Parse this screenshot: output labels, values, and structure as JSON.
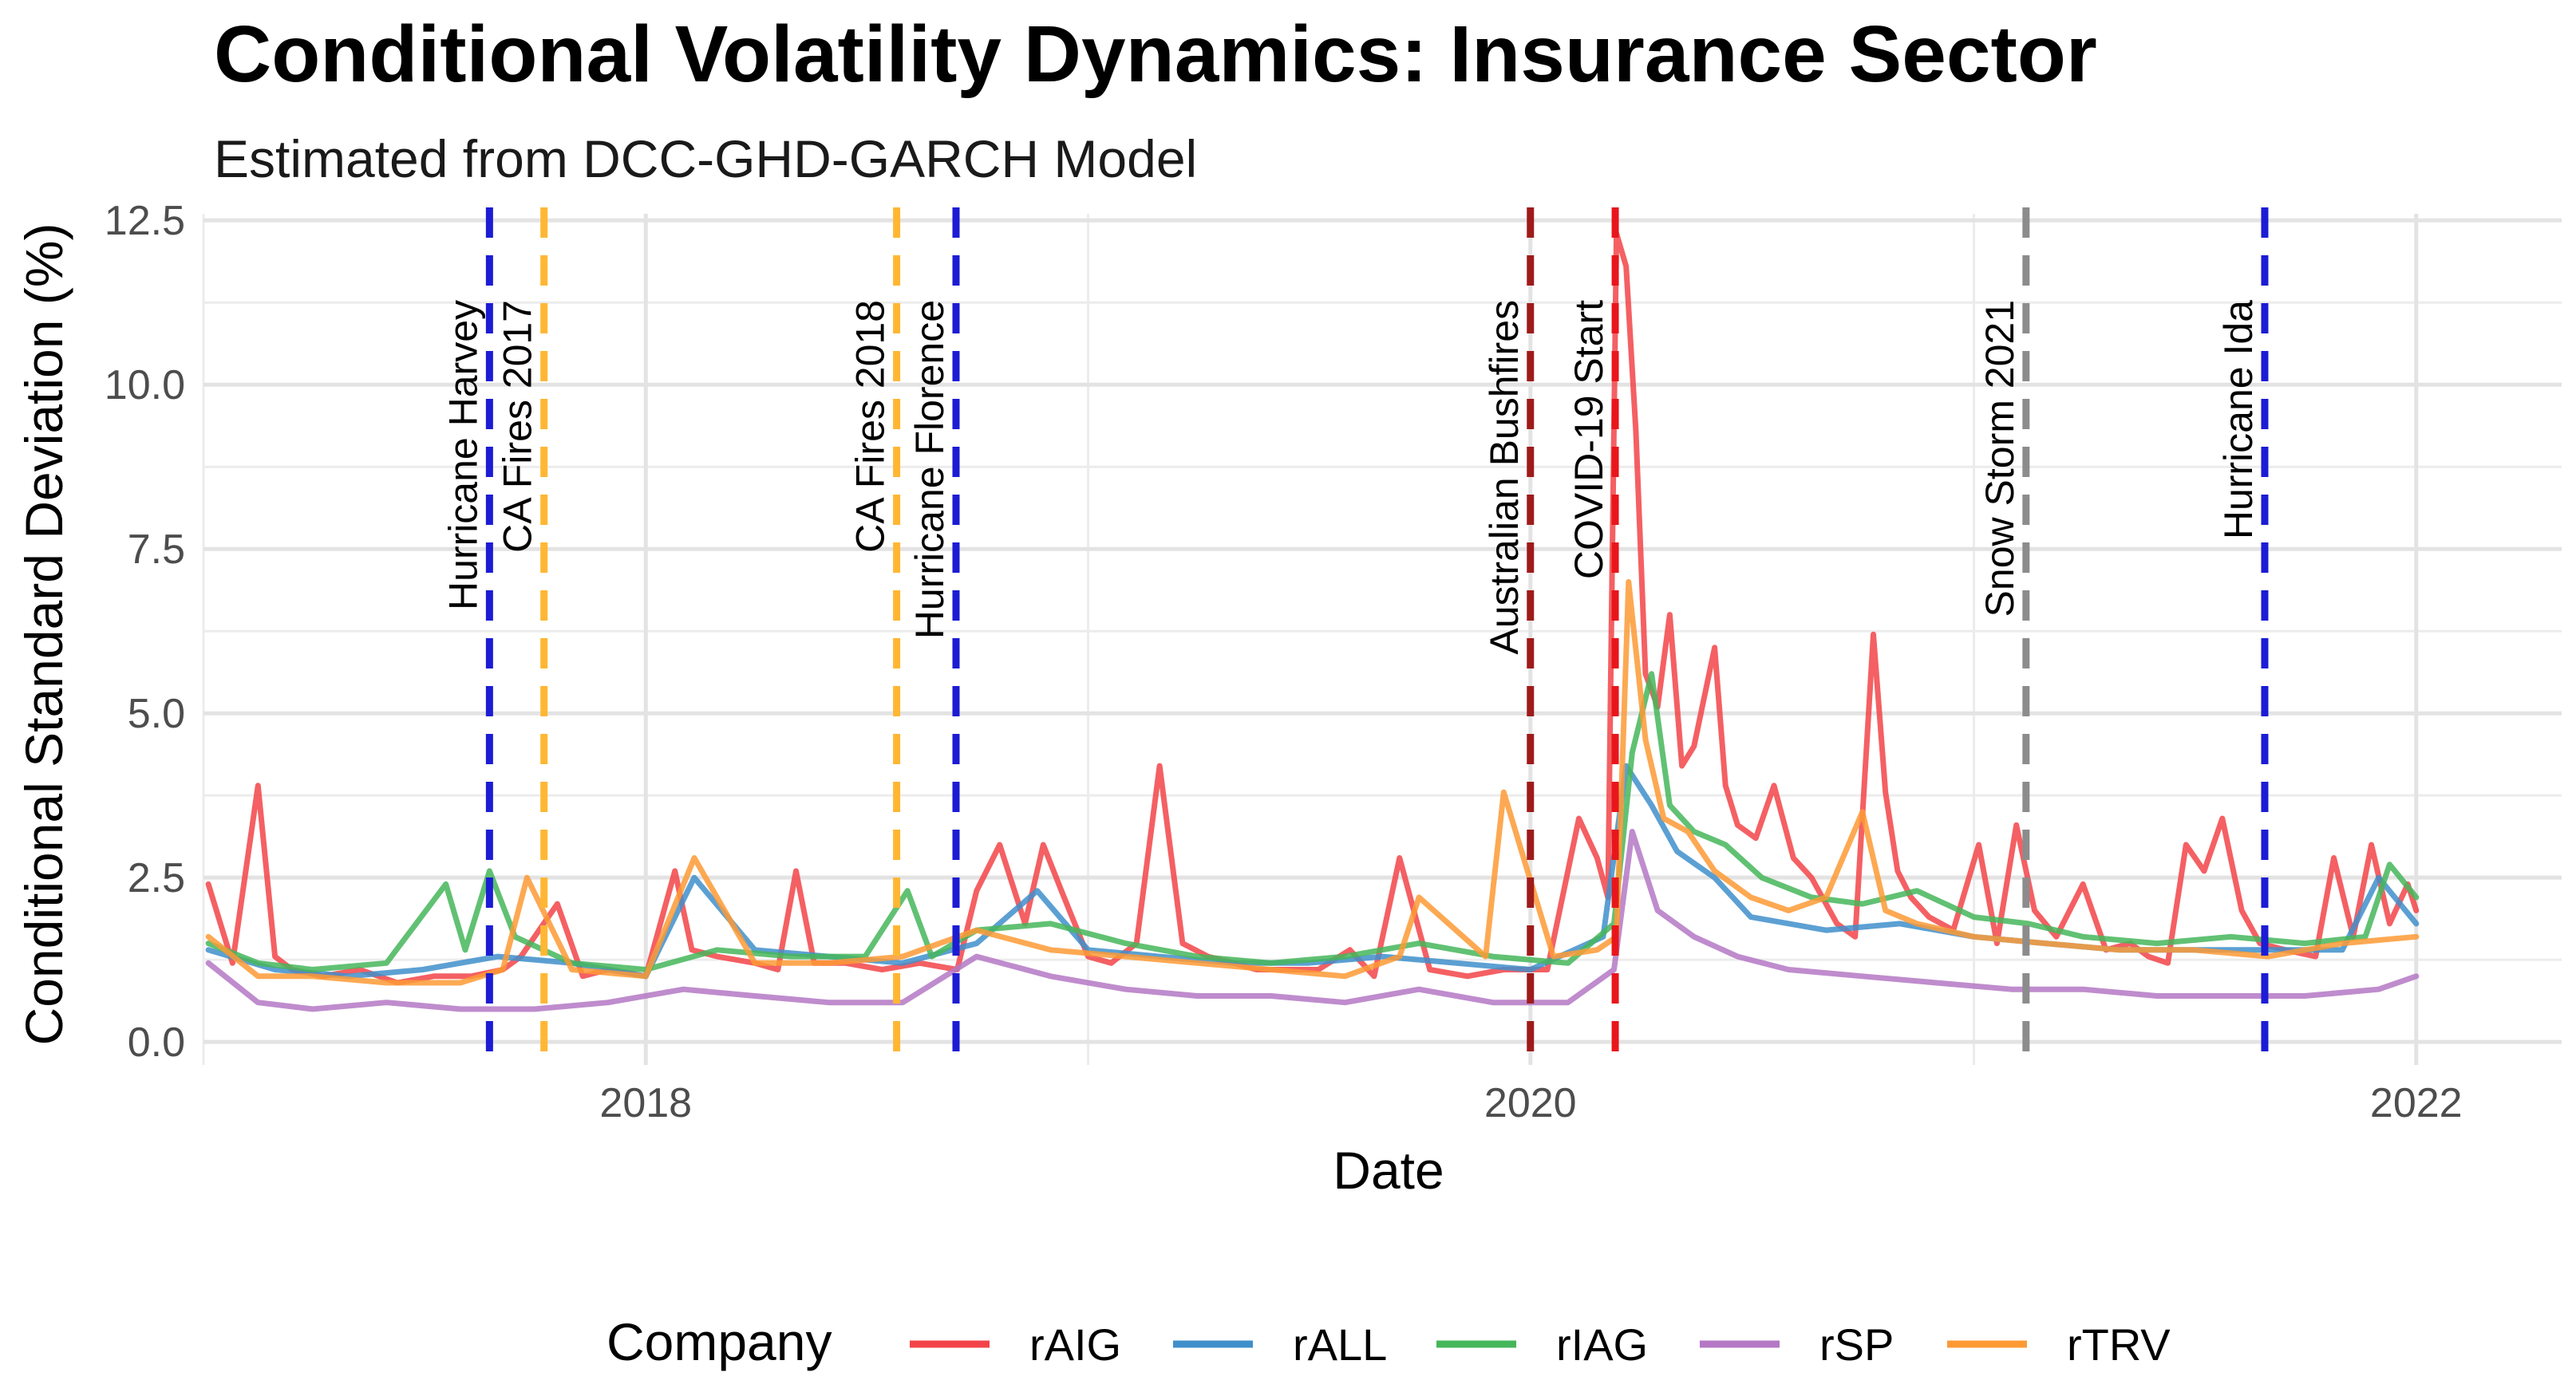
{
  "chart_data": {
    "type": "line",
    "title": "Conditional Volatility Dynamics: Insurance Sector",
    "subtitle": "Estimated from DCC-GHD-GARCH Model",
    "xlabel": "Date",
    "ylabel": "Conditional Standard Deviation (%)",
    "xlim": [
      "2017-01-01",
      "2022-05-01"
    ],
    "ylim": [
      -0.35,
      12.6
    ],
    "x_ticks": [
      {
        "date": "2018-01-01",
        "label": "2018"
      },
      {
        "date": "2020-01-01",
        "label": "2020"
      },
      {
        "date": "2022-01-01",
        "label": "2022"
      }
    ],
    "y_ticks": [
      {
        "value": 0.0,
        "label": "0.0"
      },
      {
        "value": 2.5,
        "label": "2.5"
      },
      {
        "value": 5.0,
        "label": "5.0"
      },
      {
        "value": 7.5,
        "label": "7.5"
      },
      {
        "value": 10.0,
        "label": "10.0"
      },
      {
        "value": 12.5,
        "label": "12.5"
      }
    ],
    "grid": true,
    "legend": {
      "title": "Company",
      "position": "bottom"
    },
    "events": [
      {
        "label": "Hurricane Harvey",
        "date": "2017-08-25",
        "color": "#1c1cd4"
      },
      {
        "label": "CA Fires 2017",
        "date": "2017-10-09",
        "color": "#ffb733"
      },
      {
        "label": "CA Fires 2018",
        "date": "2018-07-27",
        "color": "#ffb733"
      },
      {
        "label": "Hurricane Florence",
        "date": "2018-09-14",
        "color": "#1c1cd4"
      },
      {
        "label": "Australian Bushfires",
        "date": "2020-01-01",
        "color": "#9e1b1b"
      },
      {
        "label": "COVID-19 Start",
        "date": "2020-03-11",
        "color": "#e8161b"
      },
      {
        "label": "Snow Storm 2021",
        "date": "2021-02-13",
        "color": "#8c8c8c"
      },
      {
        "label": "Hurricane Ida",
        "date": "2021-08-29",
        "color": "#1c1cd4"
      }
    ],
    "series": [
      {
        "name": "rAIG",
        "color": "#f24448",
        "x": [
          "2017-01-05",
          "2017-01-25",
          "2017-02-15",
          "2017-03-01",
          "2017-03-15",
          "2017-04-10",
          "2017-05-10",
          "2017-06-10",
          "2017-07-10",
          "2017-08-10",
          "2017-09-05",
          "2017-09-20",
          "2017-10-20",
          "2017-11-10",
          "2017-12-01",
          "2018-01-01",
          "2018-01-25",
          "2018-02-08",
          "2018-03-01",
          "2018-04-01",
          "2018-04-20",
          "2018-05-05",
          "2018-05-20",
          "2018-06-15",
          "2018-07-15",
          "2018-08-15",
          "2018-09-15",
          "2018-10-01",
          "2018-10-20",
          "2018-11-10",
          "2018-11-25",
          "2018-12-10",
          "2019-01-01",
          "2019-01-20",
          "2019-02-10",
          "2019-03-01",
          "2019-03-20",
          "2019-04-10",
          "2019-05-01",
          "2019-05-20",
          "2019-06-15",
          "2019-07-10",
          "2019-08-05",
          "2019-08-25",
          "2019-09-15",
          "2019-10-10",
          "2019-11-10",
          "2019-12-10",
          "2020-01-15",
          "2020-02-10",
          "2020-02-25",
          "2020-03-05",
          "2020-03-12",
          "2020-03-20",
          "2020-03-28",
          "2020-04-05",
          "2020-04-15",
          "2020-04-25",
          "2020-05-05",
          "2020-05-15",
          "2020-06-01",
          "2020-06-10",
          "2020-06-20",
          "2020-07-05",
          "2020-07-20",
          "2020-08-05",
          "2020-08-20",
          "2020-09-10",
          "2020-09-25",
          "2020-10-10",
          "2020-10-20",
          "2020-10-30",
          "2020-11-10",
          "2020-11-25",
          "2020-12-15",
          "2021-01-05",
          "2021-01-20",
          "2021-02-05",
          "2021-02-20",
          "2021-03-10",
          "2021-04-01",
          "2021-04-20",
          "2021-05-10",
          "2021-05-25",
          "2021-06-10",
          "2021-06-25",
          "2021-07-10",
          "2021-07-25",
          "2021-08-10",
          "2021-08-25",
          "2021-09-15",
          "2021-10-10",
          "2021-10-25",
          "2021-11-10",
          "2021-11-25",
          "2021-12-10",
          "2021-12-25",
          "2022-01-01"
        ],
        "y": [
          2.4,
          1.2,
          3.9,
          1.3,
          1.1,
          1.0,
          1.1,
          0.9,
          1.0,
          1.0,
          1.1,
          1.3,
          2.1,
          1.0,
          1.1,
          1.0,
          2.6,
          1.4,
          1.3,
          1.2,
          1.1,
          2.6,
          1.2,
          1.2,
          1.1,
          1.2,
          1.1,
          2.3,
          3.0,
          1.8,
          3.0,
          2.3,
          1.3,
          1.2,
          1.5,
          4.2,
          1.5,
          1.3,
          1.2,
          1.1,
          1.1,
          1.1,
          1.4,
          1.0,
          2.8,
          1.1,
          1.0,
          1.1,
          1.1,
          3.4,
          2.8,
          2.2,
          12.3,
          11.8,
          9.3,
          5.6,
          5.1,
          6.5,
          4.2,
          4.5,
          6.0,
          3.9,
          3.3,
          3.1,
          3.9,
          2.8,
          2.5,
          1.8,
          1.6,
          6.2,
          3.8,
          2.6,
          2.2,
          1.9,
          1.7,
          3.0,
          1.5,
          3.3,
          2.0,
          1.6,
          2.4,
          1.4,
          1.5,
          1.3,
          1.2,
          3.0,
          2.6,
          3.4,
          2.0,
          1.5,
          1.4,
          1.3,
          2.8,
          1.6,
          3.0,
          1.8,
          2.4,
          2.0
        ]
      },
      {
        "name": "rALL",
        "color": "#3f8fcb",
        "x": [
          "2017-01-05",
          "2017-03-01",
          "2017-05-01",
          "2017-07-01",
          "2017-09-01",
          "2017-11-01",
          "2018-01-01",
          "2018-02-10",
          "2018-04-01",
          "2018-06-01",
          "2018-08-01",
          "2018-10-01",
          "2018-11-20",
          "2019-01-01",
          "2019-03-01",
          "2019-05-01",
          "2019-07-01",
          "2019-09-01",
          "2019-11-01",
          "2020-01-01",
          "2020-03-01",
          "2020-03-20",
          "2020-04-10",
          "2020-05-01",
          "2020-06-01",
          "2020-07-01",
          "2020-09-01",
          "2020-11-01",
          "2021-01-01",
          "2021-03-01",
          "2021-05-01",
          "2021-07-01",
          "2021-09-01",
          "2021-11-01",
          "2021-12-01",
          "2022-01-01"
        ],
        "y": [
          1.4,
          1.1,
          1.0,
          1.1,
          1.3,
          1.2,
          1.0,
          2.5,
          1.4,
          1.3,
          1.2,
          1.5,
          2.3,
          1.4,
          1.3,
          1.2,
          1.2,
          1.3,
          1.2,
          1.1,
          1.6,
          4.2,
          3.6,
          2.9,
          2.5,
          1.9,
          1.7,
          1.8,
          1.6,
          1.5,
          1.4,
          1.4,
          1.4,
          1.4,
          2.5,
          1.8
        ]
      },
      {
        "name": "rIAG",
        "color": "#45b65a",
        "x": [
          "2017-01-05",
          "2017-02-15",
          "2017-04-01",
          "2017-06-01",
          "2017-07-20",
          "2017-08-05",
          "2017-08-25",
          "2017-09-15",
          "2017-11-01",
          "2018-01-01",
          "2018-03-01",
          "2018-05-01",
          "2018-07-01",
          "2018-08-05",
          "2018-08-25",
          "2018-10-01",
          "2018-12-01",
          "2019-02-01",
          "2019-04-01",
          "2019-06-01",
          "2019-08-01",
          "2019-10-01",
          "2019-12-01",
          "2020-02-01",
          "2020-03-10",
          "2020-03-25",
          "2020-04-10",
          "2020-04-25",
          "2020-05-15",
          "2020-06-10",
          "2020-07-10",
          "2020-08-20",
          "2020-10-01",
          "2020-11-15",
          "2021-01-01",
          "2021-02-15",
          "2021-04-01",
          "2021-06-01",
          "2021-08-01",
          "2021-10-01",
          "2021-11-20",
          "2021-12-10",
          "2022-01-01"
        ],
        "y": [
          1.5,
          1.2,
          1.1,
          1.2,
          2.4,
          1.4,
          2.6,
          1.6,
          1.2,
          1.1,
          1.4,
          1.3,
          1.3,
          2.3,
          1.3,
          1.7,
          1.8,
          1.5,
          1.3,
          1.2,
          1.3,
          1.5,
          1.3,
          1.2,
          1.8,
          4.4,
          5.6,
          3.6,
          3.2,
          3.0,
          2.5,
          2.2,
          2.1,
          2.3,
          1.9,
          1.8,
          1.6,
          1.5,
          1.6,
          1.5,
          1.6,
          2.7,
          2.2
        ]
      },
      {
        "name": "rSP",
        "color": "#b478c4",
        "x": [
          "2017-01-05",
          "2017-02-15",
          "2017-04-01",
          "2017-06-01",
          "2017-08-01",
          "2017-10-01",
          "2017-12-01",
          "2018-02-01",
          "2018-04-01",
          "2018-06-01",
          "2018-08-01",
          "2018-10-01",
          "2018-12-01",
          "2019-02-01",
          "2019-04-01",
          "2019-06-01",
          "2019-08-01",
          "2019-10-01",
          "2019-12-01",
          "2020-02-01",
          "2020-03-10",
          "2020-03-25",
          "2020-04-15",
          "2020-05-15",
          "2020-06-20",
          "2020-08-01",
          "2020-10-01",
          "2020-12-01",
          "2021-02-01",
          "2021-04-01",
          "2021-06-01",
          "2021-08-01",
          "2021-10-01",
          "2021-12-01",
          "2022-01-01"
        ],
        "y": [
          1.2,
          0.6,
          0.5,
          0.6,
          0.5,
          0.5,
          0.6,
          0.8,
          0.7,
          0.6,
          0.6,
          1.3,
          1.0,
          0.8,
          0.7,
          0.7,
          0.6,
          0.8,
          0.6,
          0.6,
          1.1,
          3.2,
          2.0,
          1.6,
          1.3,
          1.1,
          1.0,
          0.9,
          0.8,
          0.8,
          0.7,
          0.7,
          0.7,
          0.8,
          1.0
        ]
      },
      {
        "name": "rTRV",
        "color": "#fd9a35",
        "x": [
          "2017-01-05",
          "2017-02-15",
          "2017-04-01",
          "2017-06-01",
          "2017-08-01",
          "2017-09-05",
          "2017-09-25",
          "2017-11-01",
          "2018-01-01",
          "2018-02-10",
          "2018-04-01",
          "2018-06-01",
          "2018-08-01",
          "2018-10-01",
          "2018-12-01",
          "2019-02-01",
          "2019-04-01",
          "2019-06-01",
          "2019-08-01",
          "2019-09-15",
          "2019-10-01",
          "2019-11-25",
          "2019-12-10",
          "2020-01-20",
          "2020-02-25",
          "2020-03-12",
          "2020-03-22",
          "2020-04-05",
          "2020-04-20",
          "2020-05-10",
          "2020-06-01",
          "2020-07-01",
          "2020-08-01",
          "2020-09-01",
          "2020-10-01",
          "2020-10-20",
          "2020-11-15",
          "2021-01-01",
          "2021-03-01",
          "2021-05-01",
          "2021-07-01",
          "2021-09-01",
          "2021-11-01",
          "2022-01-01"
        ],
        "y": [
          1.6,
          1.0,
          1.0,
          0.9,
          0.9,
          1.1,
          2.5,
          1.1,
          1.0,
          2.8,
          1.2,
          1.2,
          1.3,
          1.7,
          1.4,
          1.3,
          1.2,
          1.1,
          1.0,
          1.3,
          2.2,
          1.3,
          3.8,
          1.3,
          1.4,
          1.6,
          7.0,
          4.6,
          3.4,
          3.2,
          2.6,
          2.2,
          2.0,
          2.2,
          3.5,
          2.0,
          1.8,
          1.6,
          1.5,
          1.4,
          1.4,
          1.3,
          1.5,
          1.6
        ]
      }
    ]
  }
}
